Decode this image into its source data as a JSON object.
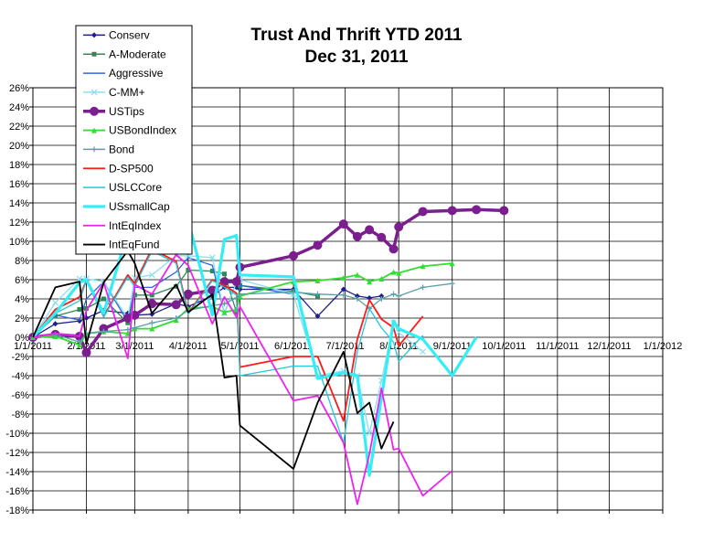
{
  "chart_data": {
    "type": "line",
    "title": "Trust And Thrift YTD 2011",
    "subtitle": "Dec 31, 2011",
    "xlabel": "",
    "ylabel": "",
    "ylim": [
      -18,
      26
    ],
    "y_ticks": [
      "26%",
      "24%",
      "22%",
      "20%",
      "18%",
      "16%",
      "14%",
      "12%",
      "10%",
      "8%",
      "6%",
      "4%",
      "2%",
      "0%",
      "-2%",
      "-4%",
      "-6%",
      "-8%",
      "-10%",
      "-12%",
      "-14%",
      "-16%",
      "-18%"
    ],
    "x_ticks": [
      "1/1/2011",
      "2/1/2011",
      "3/1/2011",
      "4/1/2011",
      "5/1/2011",
      "6/1/2011",
      "7/1/2011",
      "8/1/2011",
      "9/1/2011",
      "10/1/2011",
      "11/1/2011",
      "12/1/2011",
      "1/1/2012"
    ],
    "grid": true,
    "legend_position": "top-left",
    "x": [
      "1/1/2011",
      "1/14/2011",
      "1/28/2011",
      "2/1/2011",
      "2/11/2011",
      "2/25/2011",
      "3/1/2011",
      "3/11/2011",
      "3/25/2011",
      "4/1/2011",
      "4/15/2011",
      "4/22/2011",
      "4/29/2011",
      "5/1/2011",
      "6/1/2011",
      "6/15/2011",
      "6/30/2011",
      "7/8/2011",
      "7/15/2011",
      "7/22/2011",
      "7/29/2011",
      "8/1/2011",
      "8/15/2011",
      "9/1/2011",
      "9/15/2011",
      "10/1/2011",
      "10/15/2011",
      "11/1/2011",
      "11/15/2011",
      "12/1/2011",
      "12/15/2011",
      "1/1/2012"
    ],
    "series": [
      {
        "name": "Conserv",
        "color": "#1f1f8f",
        "marker": "diamond",
        "values": [
          0,
          1.4,
          1.7,
          2.0,
          2.8,
          2.5,
          2.3,
          2.4,
          3.5,
          3.2,
          4.3,
          5.2,
          5.2,
          5.0,
          5.0,
          2.2,
          5.0,
          4.3,
          4.1,
          4.3,
          null,
          null,
          null,
          null,
          null,
          null,
          null,
          null,
          null,
          null,
          null,
          null
        ]
      },
      {
        "name": "A-Moderate",
        "color": "#2e8b57",
        "marker": "square",
        "values": [
          0,
          2.2,
          2.9,
          3.0,
          4.0,
          1.5,
          4.4,
          4.4,
          5.3,
          7.0,
          6.9,
          6.6,
          2.6,
          5.4,
          4.8,
          4.3,
          null,
          null,
          null,
          null,
          null,
          null,
          null,
          null,
          null,
          null,
          null,
          null,
          null,
          null,
          null,
          null
        ]
      },
      {
        "name": "Aggressive",
        "color": "#3366dd",
        "marker": "none",
        "values": [
          0,
          2.3,
          1.8,
          4.0,
          5.8,
          1.6,
          5.2,
          5.2,
          6.8,
          8.3,
          7.5,
          2.5,
          5.8,
          5.4,
          4.5,
          null,
          null,
          null,
          null,
          null,
          null,
          null,
          null,
          null,
          null,
          null,
          null,
          null,
          null,
          null,
          null,
          null
        ]
      },
      {
        "name": "C-MM+",
        "color": "#88e0f0",
        "marker": "x",
        "values": [
          0,
          3.6,
          6.1,
          6.1,
          5.8,
          2.0,
          6.2,
          6.5,
          8.5,
          8.5,
          8.3,
          2.5,
          5.7,
          6.0,
          4.5,
          -4.0,
          -3.5,
          -4.0,
          -10.0,
          -4.5,
          1.5,
          0.5,
          -1.5,
          null,
          null,
          null,
          null,
          null,
          null,
          null,
          null,
          null
        ]
      },
      {
        "name": "USTips",
        "color": "#7b1f8f",
        "marker": "circle",
        "values": [
          0,
          0.3,
          0.1,
          -1.6,
          0.9,
          2.0,
          2.3,
          3.5,
          3.4,
          4.5,
          4.9,
          5.8,
          5.8,
          7.3,
          8.5,
          9.6,
          11.8,
          10.5,
          11.2,
          10.4,
          9.2,
          11.5,
          13.1,
          13.2,
          13.3,
          13.2,
          null,
          null,
          null,
          null,
          null,
          null
        ]
      },
      {
        "name": "USBondIndex",
        "color": "#33dd33",
        "marker": "triangle",
        "values": [
          0,
          0.1,
          -0.8,
          0.4,
          0.6,
          0.4,
          0.9,
          0.9,
          1.8,
          3.0,
          3.2,
          2.6,
          2.9,
          4.3,
          5.8,
          5.9,
          6.2,
          6.5,
          5.8,
          6.1,
          6.8,
          6.7,
          7.4,
          7.7,
          null,
          null,
          null,
          null,
          null,
          null,
          null,
          null
        ]
      },
      {
        "name": "Bond",
        "color": "#5aa0a8",
        "marker": "plus",
        "values": [
          0,
          0.3,
          -0.5,
          0.4,
          0.6,
          0.8,
          1.0,
          1.5,
          2.0,
          2.8,
          3.3,
          3.5,
          4.1,
          4.5,
          4.7,
          4.5,
          4.4,
          4.0,
          3.0,
          4.0,
          4.5,
          4.3,
          5.2,
          5.6,
          null,
          null,
          null,
          null,
          null,
          null,
          null,
          null
        ]
      },
      {
        "name": "D-SP500",
        "color": "#ff1a1a",
        "marker": "none",
        "values": [
          0,
          2.9,
          4.2,
          5.9,
          2.2,
          6.5,
          5.6,
          9.2,
          7.9,
          2.5,
          6.0,
          5.4,
          4.6,
          -3.1,
          -2.0,
          -2.0,
          -8.7,
          -0.2,
          3.9,
          1.9,
          1.0,
          -0.9,
          2.2,
          null,
          null,
          null,
          null,
          null,
          null,
          null,
          null,
          null
        ]
      },
      {
        "name": "USLCCore",
        "color": "#22c8d8",
        "marker": "none",
        "values": [
          0,
          2.5,
          3.8,
          5.9,
          2.1,
          6.3,
          5.3,
          9.0,
          7.7,
          2.4,
          5.9,
          5.2,
          4.4,
          -4.0,
          -3.0,
          -3.0,
          -11.0,
          -1.5,
          3.0,
          1.0,
          -0.5,
          -2.5,
          0.2,
          null,
          null,
          null,
          null,
          null,
          null,
          null,
          null,
          null
        ]
      },
      {
        "name": "USsmallCap",
        "color": "#33eef7",
        "marker": "none",
        "values": [
          0,
          2.5,
          5.7,
          6.0,
          2.5,
          11.0,
          9.7,
          12.1,
          14.3,
          12.2,
          2.3,
          10.2,
          10.6,
          6.5,
          6.3,
          -4.3,
          -3.7,
          -4.0,
          -14.4,
          -6.3,
          1.7,
          0.9,
          -0.2,
          -4.0,
          0.0,
          null,
          null,
          null,
          null,
          null,
          null,
          null
        ]
      },
      {
        "name": "IntEqIndex",
        "color": "#ee22ee",
        "marker": "none",
        "values": [
          0,
          0.4,
          0.1,
          2.8,
          5.7,
          -2.2,
          5.5,
          4.5,
          8.6,
          7.5,
          1.4,
          4.2,
          2.1,
          3.2,
          -6.6,
          -6.1,
          -11.0,
          -17.4,
          -12.2,
          -5.3,
          -11.7,
          -11.6,
          -16.5,
          -13.9,
          null,
          null,
          null,
          null,
          null,
          null,
          null,
          null
        ]
      },
      {
        "name": "IntEqFund",
        "color": "#000000",
        "marker": "none",
        "values": [
          0,
          5.2,
          5.8,
          -0.7,
          5.7,
          9.0,
          7.7,
          2.5,
          5.5,
          2.6,
          4.5,
          -4.2,
          -4.0,
          -9.2,
          -13.7,
          -6.8,
          -1.5,
          -7.9,
          -6.8,
          -11.6,
          -8.8,
          null,
          null,
          null,
          null,
          null,
          null,
          null,
          null,
          null,
          null,
          null
        ]
      }
    ]
  }
}
